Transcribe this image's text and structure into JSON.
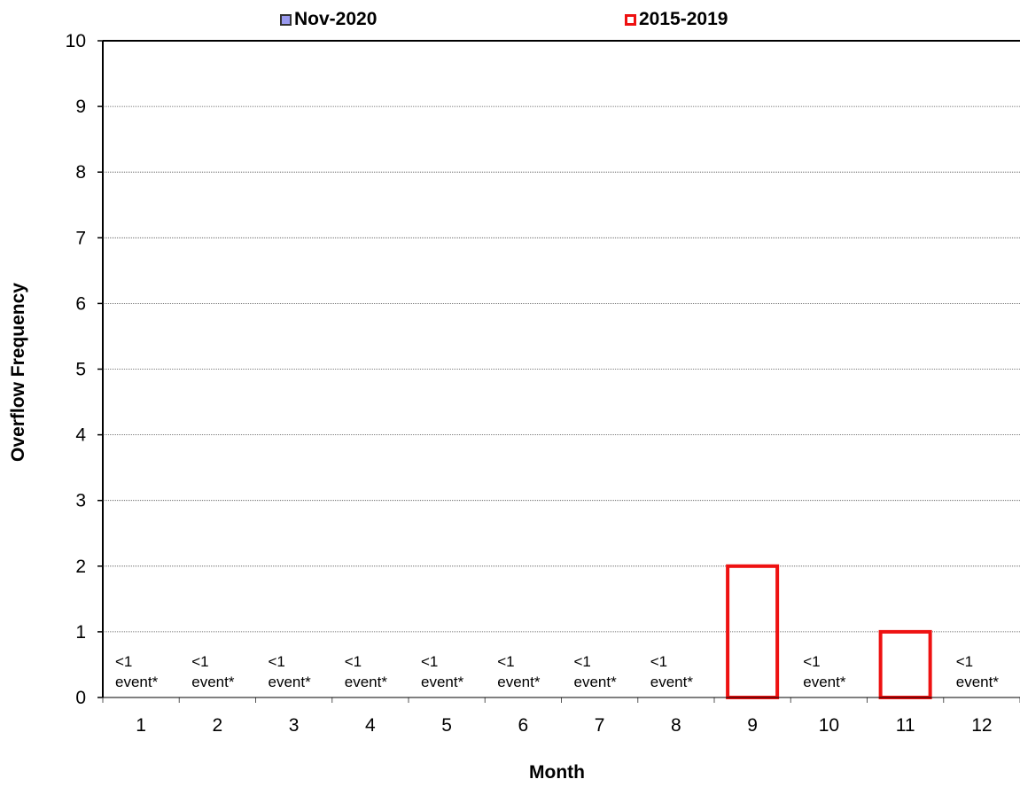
{
  "chart_data": {
    "type": "bar",
    "title": "",
    "xlabel": "Month",
    "ylabel": "Overflow Frequency",
    "ylim": [
      0,
      10
    ],
    "yticks": [
      "0",
      "1",
      "2",
      "3",
      "4",
      "5",
      "6",
      "7",
      "8",
      "9",
      "10"
    ],
    "categories": [
      "1",
      "2",
      "3",
      "4",
      "5",
      "6",
      "7",
      "8",
      "9",
      "10",
      "11",
      "12"
    ],
    "grid": true,
    "legend_position": "top",
    "series": [
      {
        "name": "Nov-2020",
        "color": "#9999ee",
        "style": "filled",
        "values": [
          0,
          0,
          0,
          0,
          0,
          0,
          0,
          0,
          0,
          0,
          0,
          0
        ]
      },
      {
        "name": "2015-2019",
        "color": "#ee1111",
        "style": "outline",
        "values": [
          0,
          0,
          0,
          0,
          0,
          0,
          0,
          0,
          2,
          0,
          1,
          0
        ]
      }
    ],
    "annotations": [
      {
        "month": "1",
        "line1": "<1",
        "line2": "event*"
      },
      {
        "month": "2",
        "line1": "<1",
        "line2": "event*"
      },
      {
        "month": "3",
        "line1": "<1",
        "line2": "event*"
      },
      {
        "month": "4",
        "line1": "<1",
        "line2": "event*"
      },
      {
        "month": "5",
        "line1": "<1",
        "line2": "event*"
      },
      {
        "month": "6",
        "line1": "<1",
        "line2": "event*"
      },
      {
        "month": "7",
        "line1": "<1",
        "line2": "event*"
      },
      {
        "month": "8",
        "line1": "<1",
        "line2": "event*"
      },
      {
        "month": "10",
        "line1": "<1",
        "line2": "event*"
      },
      {
        "month": "12",
        "line1": "<1",
        "line2": "event*"
      }
    ]
  }
}
